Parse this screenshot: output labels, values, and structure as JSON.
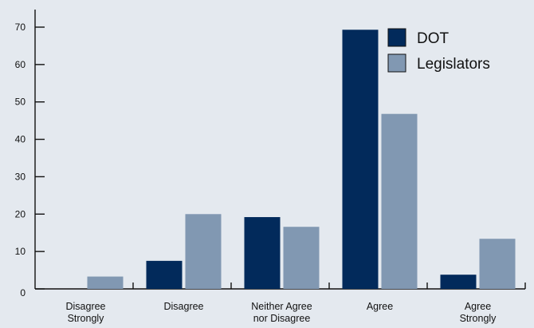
{
  "chart_data": {
    "type": "bar",
    "title": "",
    "xlabel": "",
    "ylabel": "",
    "ylim": [
      0,
      70
    ],
    "yticks": [
      0,
      10,
      20,
      30,
      40,
      50,
      60,
      70
    ],
    "categories": [
      [
        "Disagree",
        "Strongly"
      ],
      [
        "Disagree"
      ],
      [
        "Neither Agree",
        "nor Disagree"
      ],
      [
        "Agree"
      ],
      [
        "Agree",
        "Strongly"
      ]
    ],
    "series": [
      {
        "name": "DOT",
        "color": "#022a5b",
        "values": [
          0,
          7.5,
          19.2,
          69.3,
          3.8
        ]
      },
      {
        "name": "Legislators",
        "color": "#8198b2",
        "values": [
          3.3,
          20.0,
          16.6,
          46.8,
          13.4
        ]
      }
    ],
    "legend_position": "top-right",
    "grid": false
  }
}
